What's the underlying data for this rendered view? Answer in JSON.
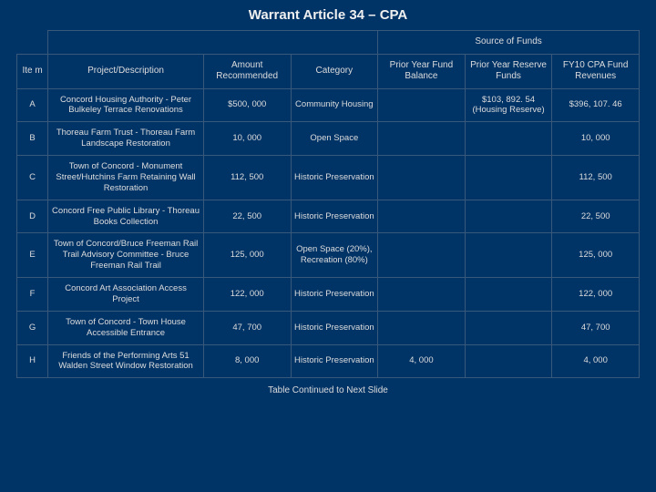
{
  "title": "Warrant Article 34 – CPA",
  "headers": {
    "source_of_funds": "Source of Funds",
    "item": "Ite m",
    "project": "Project/Description",
    "amount": "Amount Recommended",
    "category": "Category",
    "balance": "Prior Year Fund Balance",
    "reserve": "Prior Year Reserve Funds",
    "revenues": "FY10 CPA Fund Revenues"
  },
  "rows": [
    {
      "item": "A",
      "project": "Concord Housing Authority - Peter Bulkeley Terrace Renovations",
      "amount": "$500, 000",
      "category": "Community Housing",
      "balance": "",
      "reserve": "$103, 892. 54 (Housing Reserve)",
      "revenues": "$396, 107. 46"
    },
    {
      "item": "B",
      "project": "Thoreau Farm Trust - Thoreau Farm Landscape Restoration",
      "amount": "10, 000",
      "category": "Open Space",
      "balance": "",
      "reserve": "",
      "revenues": "10, 000"
    },
    {
      "item": "C",
      "project": "Town of Concord - Monument Street/Hutchins Farm Retaining Wall Restoration",
      "amount": "112, 500",
      "category": "Historic Preservation",
      "balance": "",
      "reserve": "",
      "revenues": "112, 500"
    },
    {
      "item": "D",
      "project": "Concord Free Public Library - Thoreau Books Collection",
      "amount": "22, 500",
      "category": "Historic Preservation",
      "balance": "",
      "reserve": "",
      "revenues": "22, 500"
    },
    {
      "item": "E",
      "project": "Town of Concord/Bruce Freeman Rail Trail Advisory Committee - Bruce Freeman Rail Trail",
      "amount": "125, 000",
      "category": "Open Space (20%), Recreation (80%)",
      "balance": "",
      "reserve": "",
      "revenues": "125, 000"
    },
    {
      "item": "F",
      "project": "Concord Art Association Access Project",
      "amount": "122, 000",
      "category": "Historic Preservation",
      "balance": "",
      "reserve": "",
      "revenues": "122, 000"
    },
    {
      "item": "G",
      "project": "Town of Concord - Town House Accessible Entrance",
      "amount": "47, 700",
      "category": "Historic Preservation",
      "balance": "",
      "reserve": "",
      "revenues": "47, 700"
    },
    {
      "item": "H",
      "project": "Friends of the Performing Arts 51 Walden Street Window Restoration",
      "amount": "8, 000",
      "category": "Historic Preservation",
      "balance": "4, 000",
      "reserve": "",
      "revenues": "4, 000"
    }
  ],
  "footer": "Table Continued to Next Slide",
  "colors": {
    "background": "#003366",
    "border": "#39597a",
    "text": "#dddddd",
    "title": "#f0f0f0"
  }
}
